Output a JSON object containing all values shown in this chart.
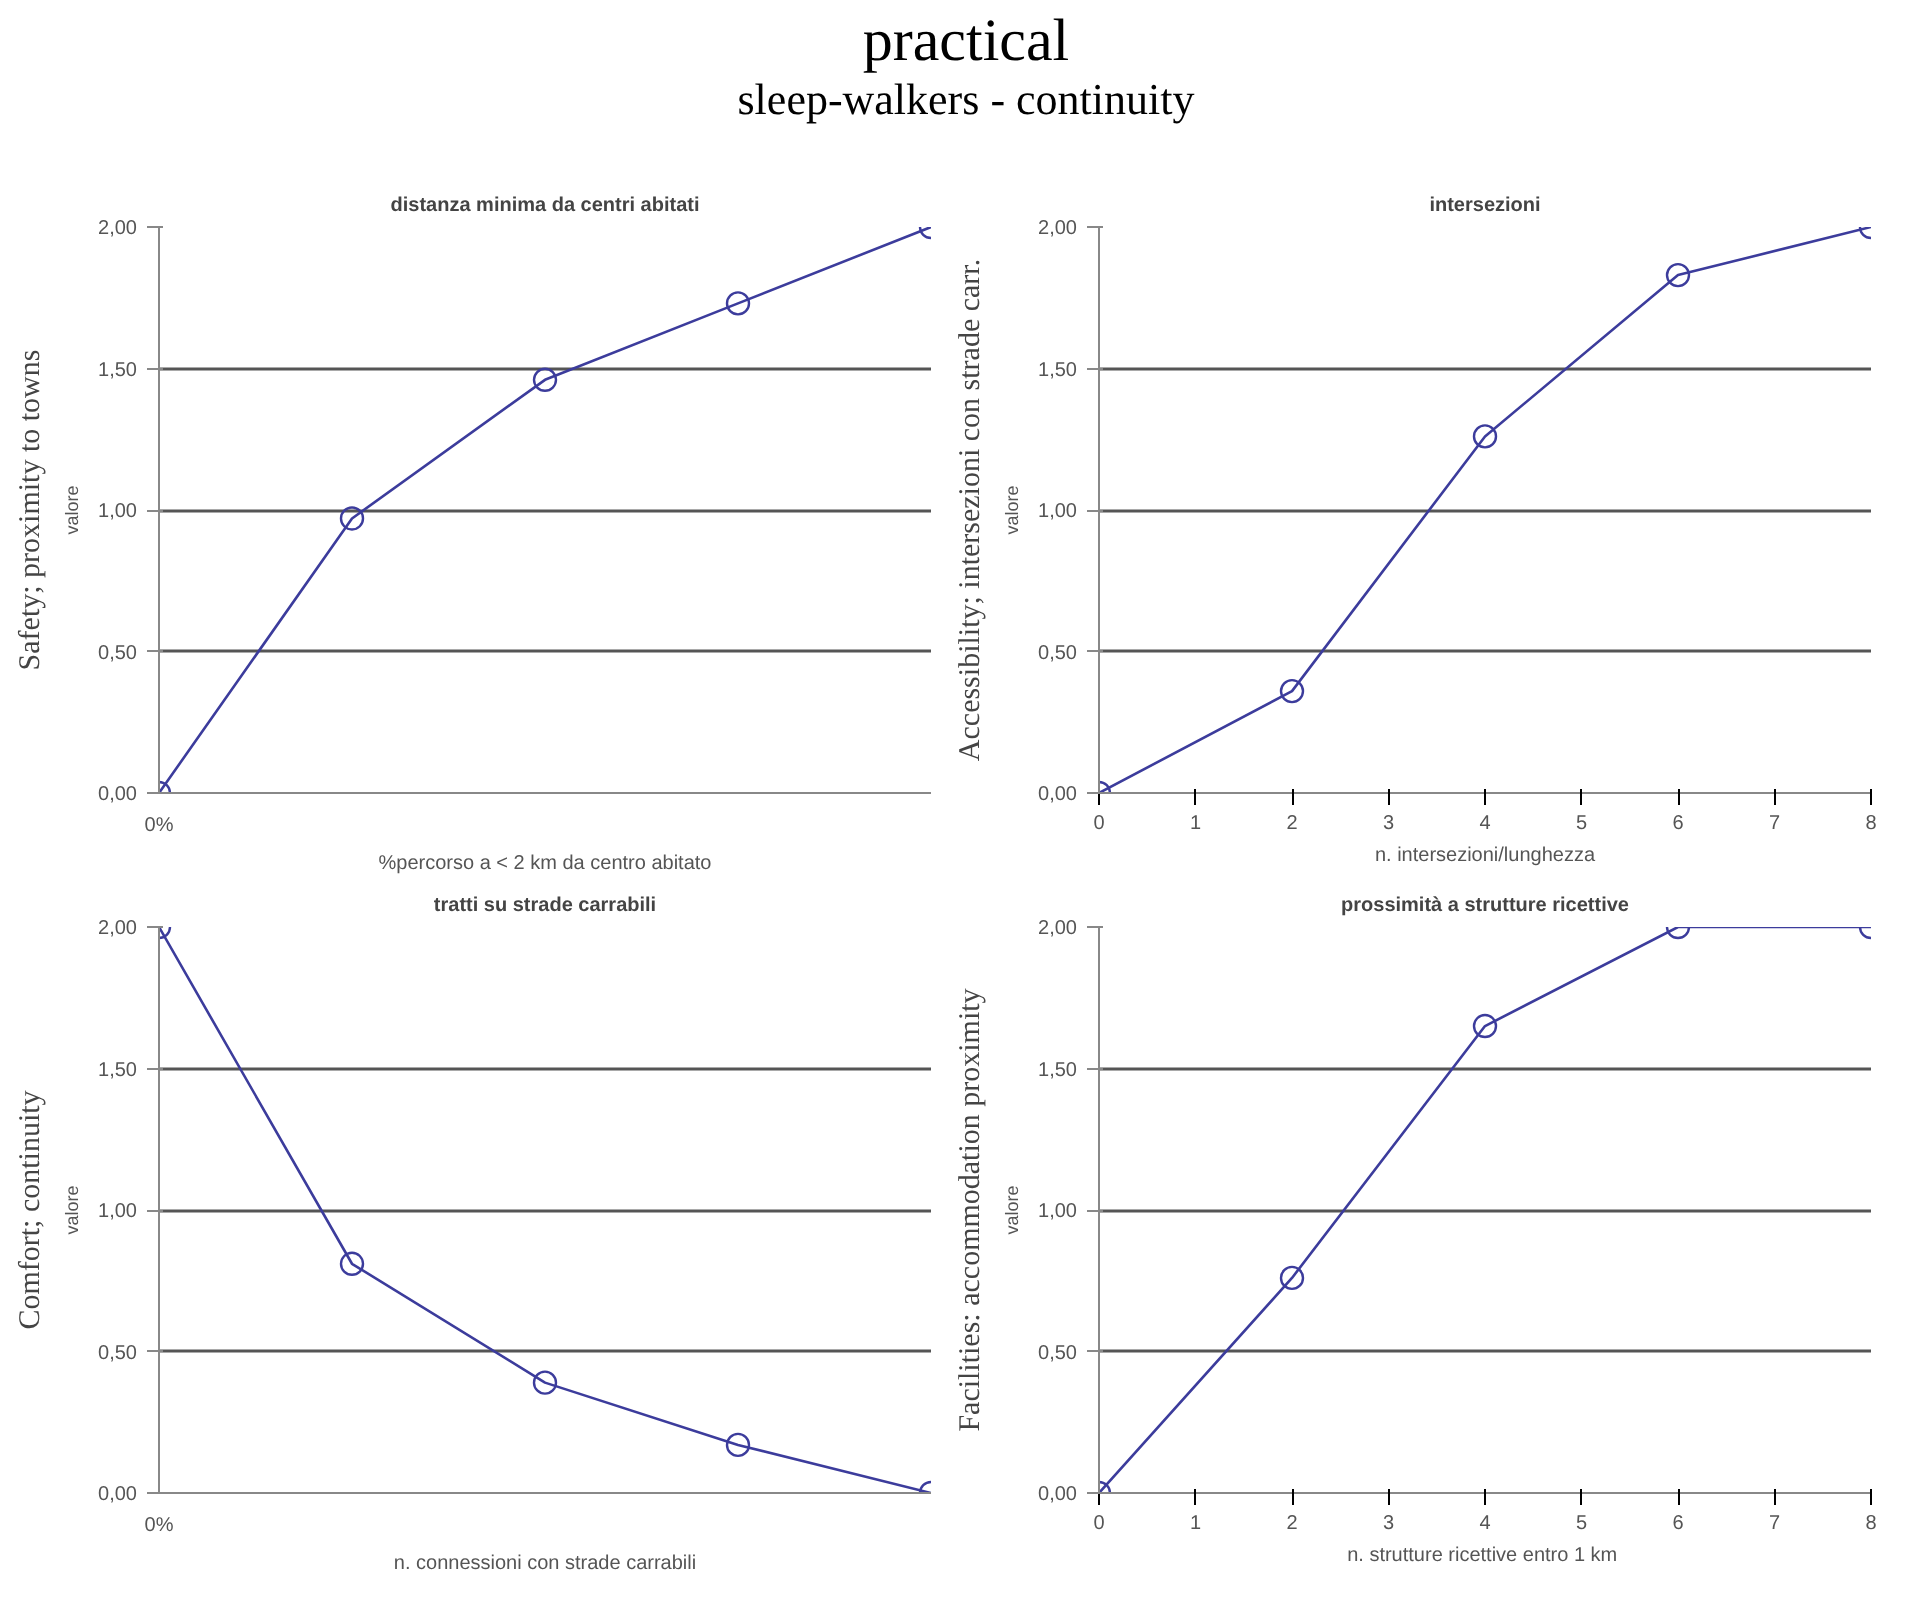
{
  "chart_data": [
    {
      "type": "other",
      "title": "practical",
      "subtitle": "sleep-walkers - continuity"
    },
    {
      "type": "line",
      "title": "distanza minima da centri abitati",
      "xlabel": "%percorso a < 2 km da centro abitato",
      "ylabel": "valore",
      "annotations": [
        "Safety; proximity to towns"
      ],
      "categories": [
        "0%",
        null,
        null,
        null,
        null
      ],
      "series": [
        {
          "color": "#3c3c9c",
          "values": [
            0.0,
            0.97,
            1.46,
            1.73,
            2.0
          ]
        }
      ],
      "ylim": [
        0,
        2
      ],
      "yticks": [
        {
          "value": 0,
          "label": "0,00"
        },
        {
          "value": 0.5,
          "label": "0,50"
        },
        {
          "value": 1,
          "label": "1,00"
        },
        {
          "value": 1.5,
          "label": "1,50"
        },
        {
          "value": 2,
          "label": "2,00"
        }
      ],
      "grid": "y",
      "marker": "circle",
      "line_style": "solid"
    },
    {
      "type": "line",
      "title": "intersezioni",
      "xlabel": "n. intersezioni/lunghezza",
      "ylabel": "valore",
      "annotations": [
        "Accessibility; intersezioni con strade carr."
      ],
      "x": [
        0,
        2,
        4,
        6,
        8
      ],
      "series": [
        {
          "color": "#3c3c9c",
          "values": [
            0.0,
            0.36,
            1.26,
            1.83,
            2.0
          ]
        }
      ],
      "xlim": [
        0,
        8
      ],
      "xticks": [
        0,
        1,
        2,
        3,
        4,
        5,
        6,
        7,
        8
      ],
      "ylim": [
        0,
        2
      ],
      "yticks": [
        {
          "value": 0,
          "label": "0,00"
        },
        {
          "value": 0.5,
          "label": "0,50"
        },
        {
          "value": 1,
          "label": "1,00"
        },
        {
          "value": 1.5,
          "label": "1,50"
        },
        {
          "value": 2,
          "label": "2,00"
        }
      ],
      "grid": "y",
      "marker": "circle",
      "line_style": "solid"
    },
    {
      "type": "line",
      "title": "tratti su strade carrabili",
      "xlabel": "n. connessioni con strade carrabili",
      "ylabel": "valore",
      "annotations": [
        "Comfort; continuity"
      ],
      "categories": [
        "0%",
        null,
        null,
        null,
        null
      ],
      "series": [
        {
          "color": "#3c3c9c",
          "values": [
            2.0,
            0.81,
            0.39,
            0.17,
            0.0
          ]
        }
      ],
      "ylim": [
        0,
        2
      ],
      "yticks": [
        {
          "value": 0,
          "label": "0,00"
        },
        {
          "value": 0.5,
          "label": "0,50"
        },
        {
          "value": 1,
          "label": "1,00"
        },
        {
          "value": 1.5,
          "label": "1,50"
        },
        {
          "value": 2,
          "label": "2,00"
        }
      ],
      "grid": "y",
      "marker": "circle",
      "line_style": "solid"
    },
    {
      "type": "line",
      "title": "prossimità a strutture ricettive",
      "xlabel": "n. strutture ricettive entro  1 km",
      "ylabel": "valore",
      "annotations": [
        "Facilities: accommodation proximity"
      ],
      "x": [
        0,
        2,
        4,
        6,
        8
      ],
      "series": [
        {
          "color": "#3c3c9c",
          "values": [
            0.0,
            0.76,
            1.65,
            2.0,
            2.0
          ]
        }
      ],
      "xlim": [
        0,
        8
      ],
      "xticks": [
        0,
        1,
        2,
        3,
        4,
        5,
        6,
        7,
        8
      ],
      "ylim": [
        0,
        2
      ],
      "yticks": [
        {
          "value": 0,
          "label": "0,00"
        },
        {
          "value": 0.5,
          "label": "0,50"
        },
        {
          "value": 1,
          "label": "1,00"
        },
        {
          "value": 1.5,
          "label": "1,50"
        },
        {
          "value": 2,
          "label": "2,00"
        }
      ],
      "grid": "y",
      "marker": "circle",
      "line_style": "solid"
    }
  ]
}
